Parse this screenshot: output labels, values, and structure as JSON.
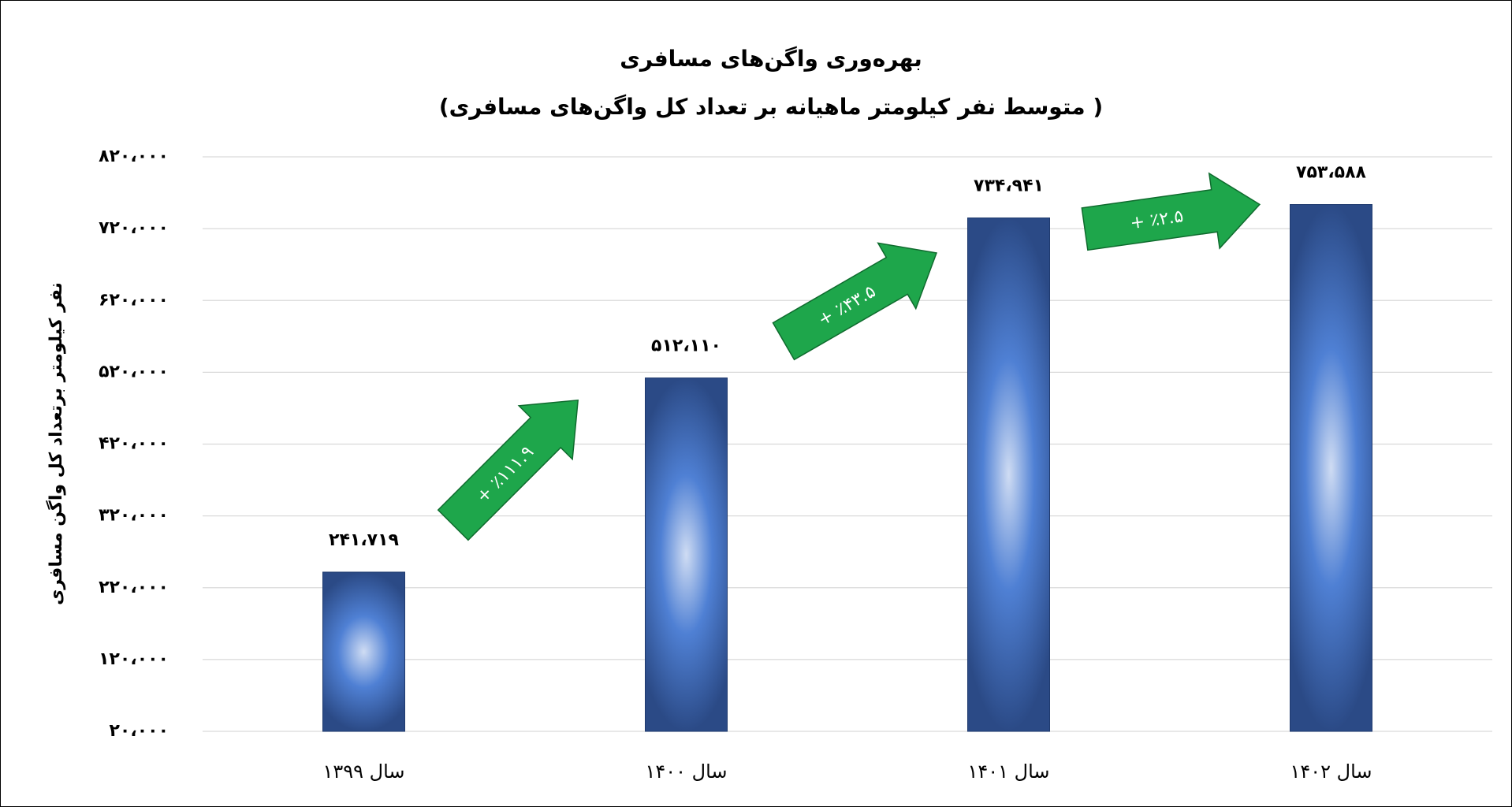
{
  "chart_data": {
    "type": "bar",
    "title": "بهره‌وری  واگن‌های مسافری",
    "subtitle": "(متوسط نفر کیلومتر ماهیانه بر تعداد کل واگن‌های مسافری )",
    "y_label": "نفر کیلومتر برتعداد کل واگن مسافری",
    "categories": [
      "سال ۱۳۹۹",
      "سال ۱۴۰۰",
      "سال ۱۴۰۱",
      "سال ۱۴۰۲"
    ],
    "values": [
      241719,
      512110,
      734941,
      753588
    ],
    "value_labels": [
      "۲۴۱،۷۱۹",
      "۵۱۲،۱۱۰",
      "۷۳۴،۹۴۱",
      "۷۵۳،۵۸۸"
    ],
    "annotations": [
      "+ ٪۱۱۱.۹",
      "+ ٪۴۳.۵",
      "+ ٪۲.۵"
    ],
    "color": "#4a7bd0",
    "ylim": [
      20000,
      820000
    ],
    "yticks": [
      {
        "value": 20000,
        "label": "۲۰،۰۰۰"
      },
      {
        "value": 120000,
        "label": "۱۲۰،۰۰۰"
      },
      {
        "value": 220000,
        "label": "۲۲۰،۰۰۰"
      },
      {
        "value": 320000,
        "label": "۳۲۰،۰۰۰"
      },
      {
        "value": 420000,
        "label": "۴۲۰،۰۰۰"
      },
      {
        "value": 520000,
        "label": "۵۲۰،۰۰۰"
      },
      {
        "value": 620000,
        "label": "۶۲۰،۰۰۰"
      },
      {
        "value": 720000,
        "label": "۷۲۰،۰۰۰"
      },
      {
        "value": 820000,
        "label": "۸۲۰،۰۰۰"
      }
    ],
    "grid": true
  }
}
